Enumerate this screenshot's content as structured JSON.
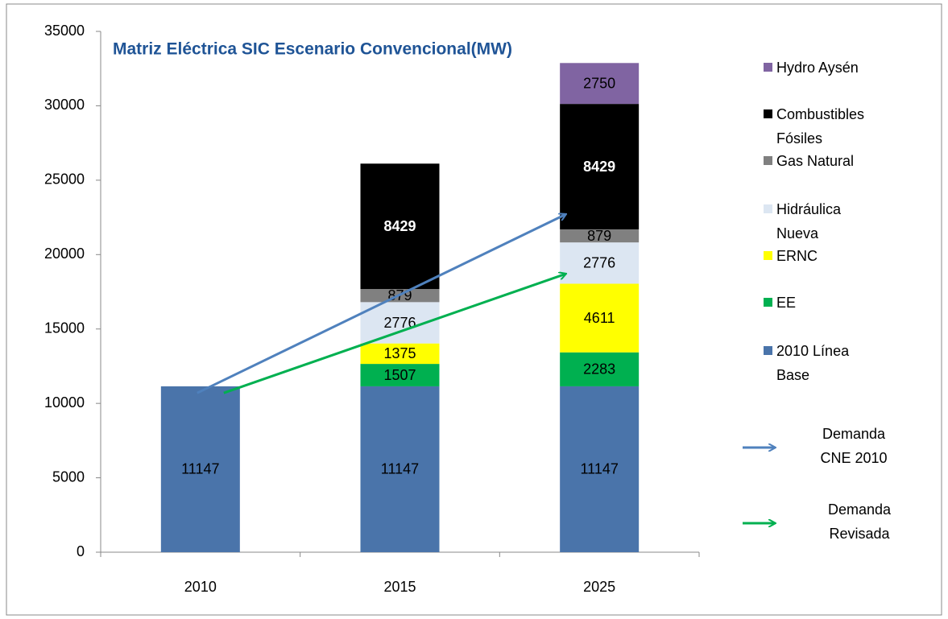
{
  "chart_data": {
    "type": "stacked_bar",
    "title": "Matriz Eléctrica SIC Escenario Convencional(MW)",
    "categories": [
      "2010",
      "2015",
      "2025"
    ],
    "series": [
      {
        "name": "2010 Línea Base",
        "color": "#4a74aa",
        "values": [
          11147,
          11147,
          11147
        ]
      },
      {
        "name": "EE",
        "color": "#00b050",
        "values": [
          null,
          1507,
          2283
        ]
      },
      {
        "name": "ERNC",
        "color": "#ffff00",
        "values": [
          null,
          1375,
          4611
        ]
      },
      {
        "name": "Hidráulica Nueva",
        "color": "#dce6f2",
        "values": [
          null,
          2776,
          2776
        ]
      },
      {
        "name": "Gas Natural",
        "color": "#808080",
        "values": [
          null,
          879,
          879
        ]
      },
      {
        "name": "Combustibles Fósiles",
        "color": "#000000",
        "values": [
          null,
          8429,
          8429
        ]
      },
      {
        "name": "Hydro Aysén",
        "color": "#8064a2",
        "values": [
          null,
          null,
          2750
        ]
      }
    ],
    "annotations": [
      {
        "label": "Demanda CNE 2010",
        "color": "#4f81bd",
        "x": [
          "2010",
          "2025"
        ],
        "values": [
          10700,
          22700
        ]
      },
      {
        "label": "Demanda Revisada",
        "color": "#00b050",
        "x": [
          "2010",
          "2025"
        ],
        "values": [
          10700,
          18700
        ]
      }
    ],
    "ylim": [
      0,
      35000
    ],
    "yticks": [
      0,
      5000,
      10000,
      15000,
      20000,
      25000,
      30000,
      35000
    ],
    "legend": "right"
  }
}
